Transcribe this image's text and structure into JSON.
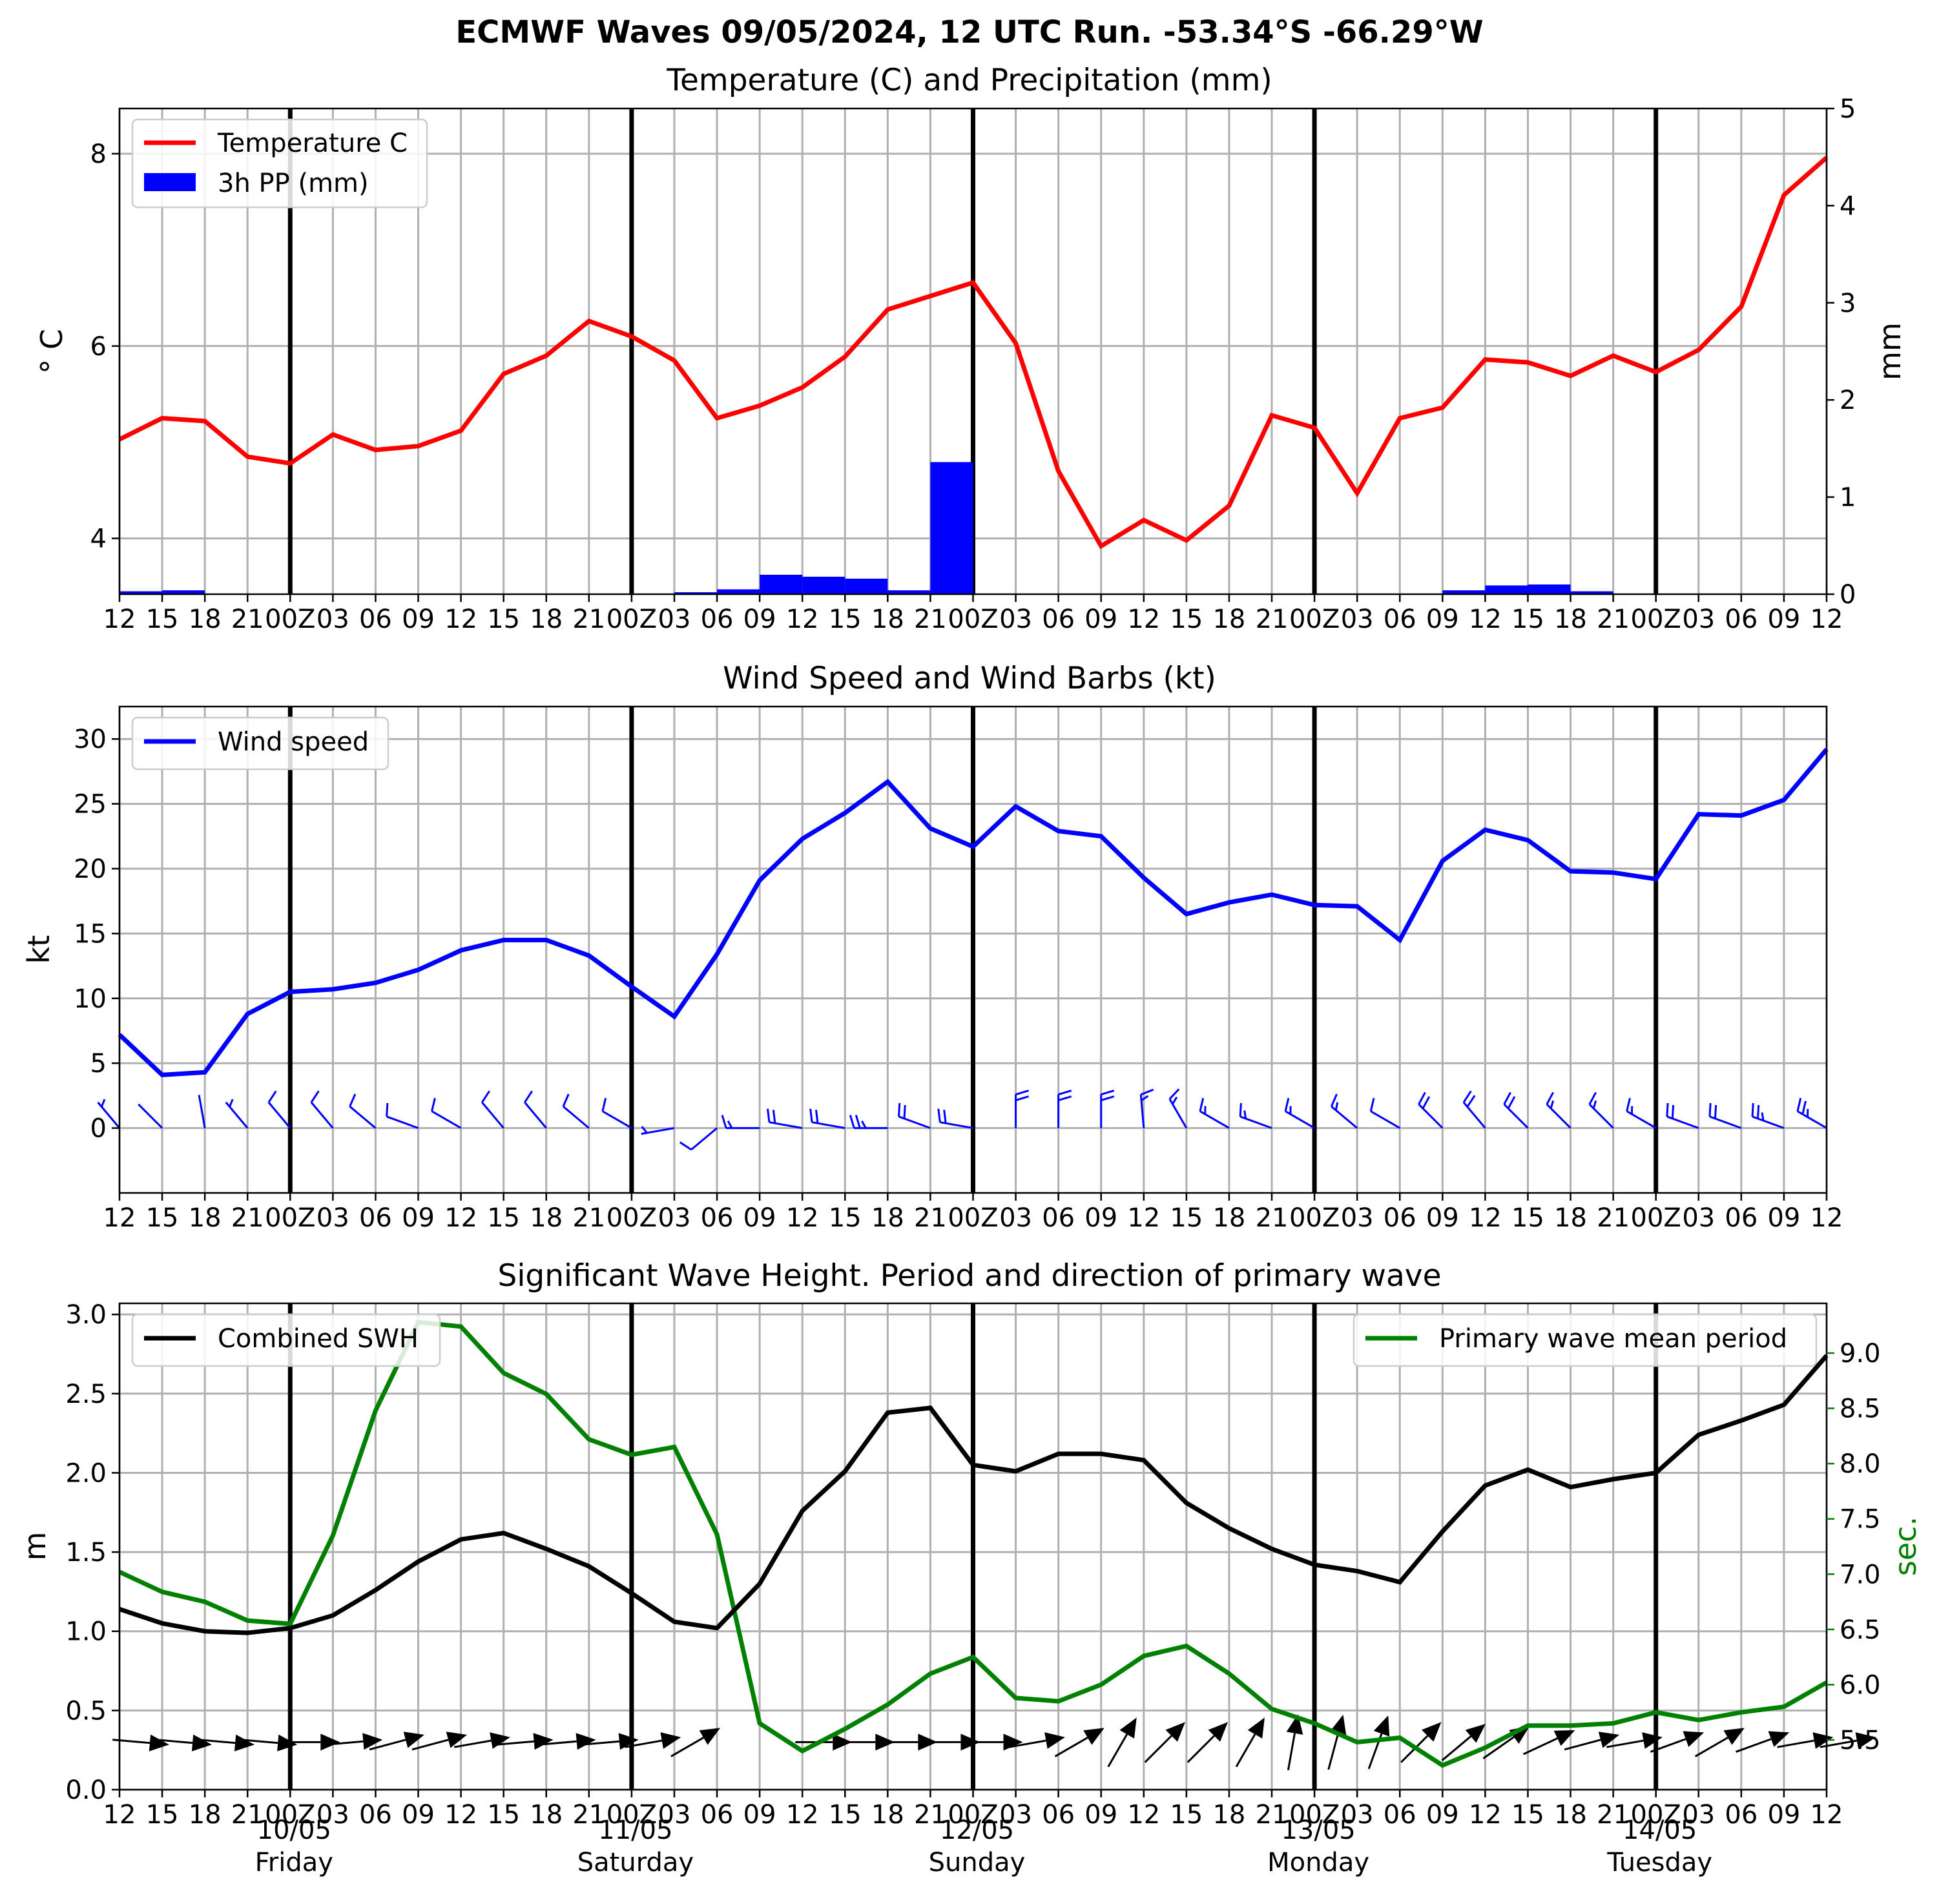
{
  "title": "ECMWF Waves 09/05/2024, 12 UTC Run. -53.34°S -66.29°W",
  "time_ticks": [
    "12",
    "15",
    "18",
    "21",
    "00Z",
    "03",
    "06",
    "09",
    "12",
    "15",
    "18",
    "21",
    "00Z",
    "03",
    "06",
    "09",
    "12",
    "15",
    "18",
    "21",
    "00Z",
    "03",
    "06",
    "09",
    "12",
    "15",
    "18",
    "21",
    "00Z",
    "03",
    "06",
    "09",
    "12",
    "15",
    "18",
    "21",
    "00Z",
    "03",
    "06",
    "09",
    "12"
  ],
  "day_labels": [
    {
      "date": "10/05",
      "day": "Friday"
    },
    {
      "date": "11/05",
      "day": "Saturday"
    },
    {
      "date": "12/05",
      "day": "Sunday"
    },
    {
      "date": "13/05",
      "day": "Monday"
    },
    {
      "date": "14/05",
      "day": "Tuesday"
    }
  ],
  "chart_data": [
    {
      "type": "line",
      "title": "Temperature (C) and Precipitation (mm)",
      "ylabel": "° C",
      "y2label": "mm",
      "ylim": [
        3.42,
        8.47
      ],
      "y2lim": [
        0,
        5
      ],
      "yticks": [
        4,
        6,
        8
      ],
      "y2ticks": [
        0,
        1,
        2,
        3,
        4,
        5
      ],
      "grid": true,
      "legend_position": "upper-left",
      "series": [
        {
          "name": "Temperature C",
          "color": "#ff0000",
          "axis": "left",
          "values": [
            5.03,
            5.25,
            5.22,
            4.85,
            4.78,
            5.08,
            4.92,
            4.96,
            5.12,
            5.71,
            5.9,
            6.26,
            6.1,
            5.85,
            5.25,
            5.38,
            5.57,
            5.89,
            6.38,
            6.52,
            6.66,
            6.03,
            4.7,
            3.92,
            4.19,
            3.98,
            4.34,
            5.28,
            5.15,
            4.47,
            5.25,
            5.36,
            5.86,
            5.83,
            5.69,
            5.9,
            5.73,
            5.96,
            6.41,
            7.57,
            7.96
          ]
        },
        {
          "name": "3h PP (mm)",
          "color": "#0000ff",
          "axis": "right",
          "kind": "bar",
          "values": [
            0.03,
            0.04,
            0,
            0,
            0,
            0,
            0,
            0,
            0,
            0,
            0,
            0,
            0,
            0.02,
            0.05,
            0.2,
            0.18,
            0.16,
            0.04,
            1.36,
            0,
            0,
            0,
            0,
            0,
            0,
            0,
            0,
            0,
            0,
            0,
            0.04,
            0.09,
            0.1,
            0.03,
            0,
            0,
            0,
            0,
            0
          ]
        }
      ]
    },
    {
      "type": "line",
      "title": "Wind Speed and Wind Barbs (kt)",
      "ylabel": "kt",
      "ylim": [
        -5,
        32.5
      ],
      "yticks": [
        0,
        5,
        10,
        15,
        20,
        25,
        30
      ],
      "grid": true,
      "legend_position": "upper-left",
      "series": [
        {
          "name": "Wind speed",
          "color": "#0000ff",
          "values": [
            7.2,
            4.1,
            4.3,
            8.8,
            10.5,
            10.7,
            11.2,
            12.2,
            13.7,
            14.5,
            14.5,
            13.3,
            10.9,
            8.6,
            13.4,
            19.1,
            22.3,
            24.3,
            26.7,
            23.1,
            21.7,
            24.8,
            22.9,
            22.5,
            19.3,
            16.5,
            17.4,
            18.0,
            17.2,
            17.1,
            14.5,
            20.6,
            23.0,
            22.2,
            19.8,
            19.7,
            19.2,
            24.2,
            24.1,
            25.3,
            29.2
          ]
        }
      ],
      "barb_direction_deg": [
        320,
        315,
        350,
        320,
        320,
        320,
        310,
        290,
        300,
        320,
        320,
        310,
        300,
        260,
        230,
        270,
        280,
        280,
        270,
        290,
        280,
        0,
        0,
        0,
        355,
        330,
        300,
        290,
        300,
        310,
        300,
        315,
        320,
        315,
        315,
        315,
        300,
        290,
        290,
        290,
        300
      ]
    },
    {
      "type": "line",
      "title": "Significant Wave Height. Period and direction of primary wave",
      "ylabel": "m",
      "y2label": "sec.",
      "ylim": [
        0,
        3.07
      ],
      "y2lim": [
        5.05,
        9.45
      ],
      "yticks": [
        0.0,
        0.5,
        1.0,
        1.5,
        2.0,
        2.5,
        3.0
      ],
      "y2ticks": [
        5.5,
        6.0,
        6.5,
        7.0,
        7.5,
        8.0,
        8.5,
        9.0
      ],
      "grid": true,
      "series": [
        {
          "name": "Combined SWH",
          "color": "#000000",
          "axis": "left",
          "legend_position": "upper-left",
          "values": [
            1.14,
            1.05,
            1.0,
            0.99,
            1.02,
            1.1,
            1.26,
            1.44,
            1.58,
            1.62,
            1.52,
            1.41,
            1.24,
            1.06,
            1.02,
            1.3,
            1.76,
            2.01,
            2.38,
            2.41,
            2.05,
            2.01,
            2.12,
            2.12,
            2.08,
            1.81,
            1.65,
            1.52,
            1.42,
            1.38,
            1.31,
            1.63,
            1.92,
            2.02,
            1.91,
            1.96,
            2.0,
            2.24,
            2.33,
            2.43,
            2.74
          ]
        },
        {
          "name": "Primary wave mean period",
          "color": "#008000",
          "axis": "right",
          "legend_position": "upper-right",
          "values": [
            7.02,
            6.84,
            6.75,
            6.58,
            6.55,
            7.35,
            8.48,
            9.28,
            9.24,
            8.82,
            8.63,
            8.22,
            8.08,
            8.15,
            7.36,
            5.65,
            5.4,
            5.6,
            5.82,
            6.1,
            6.25,
            5.88,
            5.85,
            6.0,
            6.26,
            6.35,
            6.1,
            5.78,
            5.65,
            5.48,
            5.52,
            5.27,
            5.43,
            5.63,
            5.63,
            5.65,
            5.75,
            5.68,
            5.75,
            5.8,
            6.02
          ]
        }
      ],
      "wave_direction_deg": [
        95,
        95,
        95,
        95,
        90,
        85,
        75,
        75,
        80,
        85,
        85,
        85,
        80,
        60,
        null,
        null,
        90,
        90,
        90,
        90,
        90,
        80,
        60,
        30,
        45,
        45,
        30,
        10,
        15,
        20,
        45,
        50,
        55,
        65,
        75,
        80,
        70,
        60,
        70,
        80,
        80
      ]
    }
  ]
}
